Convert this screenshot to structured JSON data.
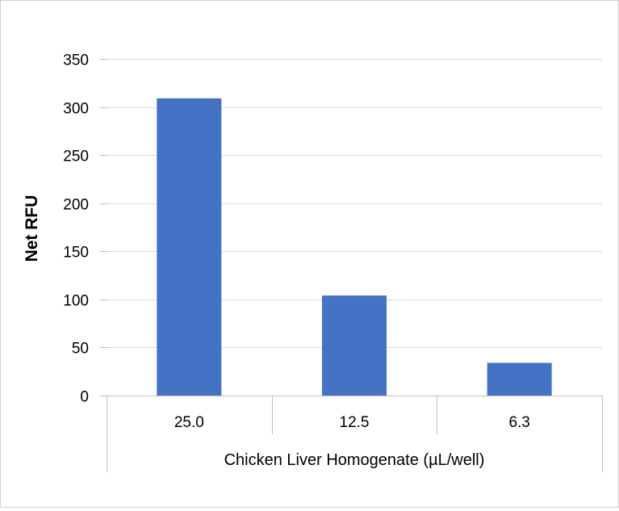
{
  "chart_data": {
    "type": "bar",
    "title": "",
    "categories": [
      "25.0",
      "12.5",
      "6.3"
    ],
    "series": [
      {
        "values": [
          309,
          104,
          34
        ]
      }
    ],
    "xlabel": "Chicken Liver Homogenate (µL/well)",
    "ylabel": "Net RFU",
    "ylim": [
      0,
      350
    ],
    "yticks": [
      0,
      50,
      100,
      150,
      200,
      250,
      300,
      350
    ],
    "grid": true,
    "legend": "none",
    "colors": {
      "bar": "#4472C4",
      "gridline": "#D9D9D9",
      "axis": "#BFBFBF"
    }
  }
}
